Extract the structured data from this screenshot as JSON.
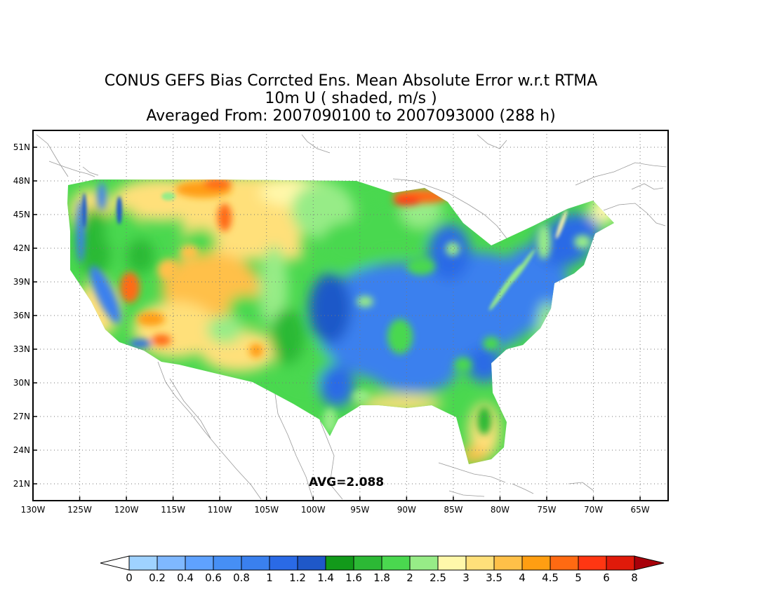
{
  "title": {
    "line1": "CONUS GEFS Bias Corrcted Ens. Mean Absolute Error w.r.t RTMA",
    "line2": "10m U ( shaded, m/s )",
    "line3": "Averaged From: 2007090100 to 2007093000 (288 h)"
  },
  "map": {
    "lon_range": [
      -130,
      -62
    ],
    "lat_range": [
      19.5,
      52.5
    ],
    "lon_ticks": [
      "130W",
      "125W",
      "120W",
      "115W",
      "110W",
      "105W",
      "100W",
      "95W",
      "90W",
      "85W",
      "80W",
      "75W",
      "70W",
      "65W"
    ],
    "lat_ticks": [
      "51N",
      "48N",
      "45N",
      "42N",
      "39N",
      "36N",
      "33N",
      "30N",
      "27N",
      "24N",
      "21N"
    ],
    "grid": "dotted",
    "annotation": "AVG=2.088"
  },
  "colorbar": {
    "labels": [
      "0",
      "0.2",
      "0.4",
      "0.6",
      "0.8",
      "1",
      "1.2",
      "1.4",
      "1.6",
      "1.8",
      "2",
      "2.5",
      "3",
      "3.5",
      "4",
      "4.5",
      "5",
      "6",
      "8"
    ],
    "colors": [
      "#ffffff",
      "#9fd2ff",
      "#7fb8ff",
      "#5fa2ff",
      "#468ff5",
      "#3a80ee",
      "#2a6ae6",
      "#1f58c8",
      "#129a1a",
      "#2cb935",
      "#4ad84f",
      "#97ec87",
      "#fff8aa",
      "#ffe07a",
      "#ffc048",
      "#ff9e12",
      "#ff6a12",
      "#ff3612",
      "#e01a0a",
      "#a8000a"
    ]
  }
}
